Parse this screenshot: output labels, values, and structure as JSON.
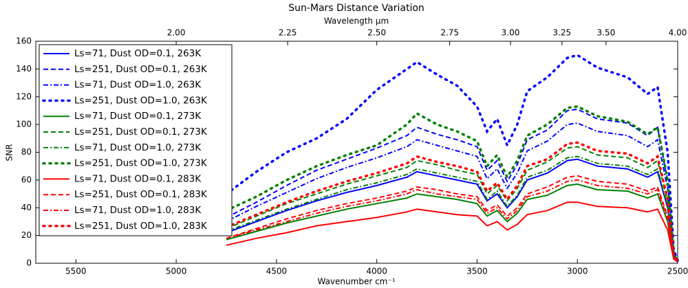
{
  "chart_data": {
    "type": "line",
    "title": "Sun-Mars Distance Variation",
    "xlabel": "Wavenumber cm⁻¹",
    "ylabel": "SNR",
    "x2label": "Wavelength μm",
    "x": [
      4750,
      4600,
      4450,
      4300,
      4150,
      4000,
      3850,
      3800,
      3700,
      3600,
      3500,
      3450,
      3400,
      3350,
      3300,
      3250,
      3150,
      3050,
      3000,
      2900,
      2750,
      2650,
      2600,
      2550,
      2520,
      2500
    ],
    "xlim": [
      5700,
      2500
    ],
    "xticks": [
      5500,
      5000,
      4500,
      4000,
      3500,
      3000,
      2500
    ],
    "x2ticks": [
      {
        "value": 2,
        "label": "2.00"
      },
      2.25,
      {
        "value": 2.5,
        "label": "2.50"
      },
      2.75,
      {
        "value": 3,
        "label": "3.00"
      },
      3.25,
      {
        "value": 3.5,
        "label": "3.50"
      },
      {
        "value": 4,
        "label": "4.00"
      }
    ],
    "ylim": [
      0,
      160
    ],
    "yticks": [
      0,
      20,
      40,
      60,
      80,
      100,
      120,
      140,
      160
    ],
    "legend": "upper left",
    "series": [
      {
        "name": "Ls=71, Dust OD=0.1, 263K",
        "color": "#0000ff",
        "style": "solid",
        "values": [
          22,
          30,
          38,
          45,
          51,
          56,
          62,
          66,
          63,
          60,
          57,
          45,
          50,
          40,
          48,
          60,
          65,
          74,
          75,
          70,
          68,
          62,
          66,
          40,
          5,
          1
        ]
      },
      {
        "name": "Ls=251, Dust OD=0.1, 263K",
        "color": "#0000ff",
        "style": "dashed",
        "values": [
          33,
          44,
          56,
          67,
          75,
          83,
          92,
          98,
          93,
          89,
          84,
          67,
          74,
          59,
          71,
          89,
          96,
          110,
          111,
          104,
          101,
          92,
          98,
          59,
          7,
          1
        ]
      },
      {
        "name": "Ls=71, Dust OD=1.0, 263K",
        "color": "#0000ff",
        "style": "dashdot",
        "values": [
          30,
          41,
          51,
          61,
          69,
          76,
          84,
          89,
          85,
          81,
          77,
          61,
          68,
          54,
          65,
          81,
          88,
          100,
          101,
          95,
          92,
          84,
          89,
          54,
          7,
          1
        ]
      },
      {
        "name": "Ls=251, Dust OD=1.0, 263K",
        "color": "#0000ff",
        "style": "dotted",
        "values": [
          50,
          66,
          80,
          90,
          104,
          125,
          140,
          145,
          136,
          128,
          113,
          95,
          104,
          85,
          100,
          124,
          134,
          148,
          150,
          141,
          134,
          122,
          127,
          80,
          10,
          2
        ]
      },
      {
        "name": "Ls=71, Dust OD=0.1, 273K",
        "color": "#008000",
        "style": "solid",
        "values": [
          17,
          23,
          29,
          34,
          39,
          43,
          47,
          50,
          48,
          46,
          43,
          34,
          38,
          30,
          36,
          46,
          49,
          56,
          57,
          53,
          52,
          47,
          50,
          30,
          4,
          1
        ]
      },
      {
        "name": "Ls=251, Dust OD=0.1, 273K",
        "color": "#008000",
        "style": "dashed",
        "values": [
          25,
          34,
          43,
          50,
          57,
          63,
          69,
          74,
          71,
          67,
          64,
          50,
          56,
          45,
          54,
          67,
          73,
          83,
          84,
          78,
          76,
          69,
          74,
          45,
          6,
          1
        ]
      },
      {
        "name": "Ls=71, Dust OD=1.0, 273K",
        "color": "#008000",
        "style": "dashdot",
        "values": [
          23,
          31,
          39,
          46,
          53,
          58,
          64,
          68,
          65,
          62,
          59,
          46,
          52,
          41,
          49,
          62,
          67,
          76,
          77,
          72,
          70,
          64,
          68,
          41,
          5,
          1
        ]
      },
      {
        "name": "Ls=251, Dust OD=1.0, 273K",
        "color": "#008000",
        "style": "dotted",
        "values": [
          38,
          48,
          60,
          70,
          78,
          85,
          100,
          108,
          100,
          95,
          88,
          70,
          78,
          62,
          74,
          92,
          100,
          112,
          113,
          106,
          102,
          93,
          98,
          60,
          8,
          1
        ]
      },
      {
        "name": "Ls=71, Dust OD=0.1, 283K",
        "color": "#ff0000",
        "style": "solid",
        "values": [
          13,
          18,
          22,
          27,
          30,
          33,
          37,
          39,
          37,
          35,
          34,
          27,
          30,
          24,
          28,
          35,
          38,
          44,
          44,
          41,
          40,
          37,
          39,
          24,
          3,
          1
        ]
      },
      {
        "name": "Ls=251, Dust OD=0.1, 283K",
        "color": "#ff0000",
        "style": "dashed",
        "values": [
          18,
          25,
          32,
          38,
          43,
          47,
          52,
          55,
          53,
          50,
          48,
          38,
          42,
          34,
          40,
          50,
          55,
          62,
          63,
          59,
          57,
          52,
          55,
          34,
          4,
          1
        ]
      },
      {
        "name": "Ls=71, Dust OD=1.0, 283K",
        "color": "#ff0000",
        "style": "dashdot",
        "values": [
          18,
          24,
          30,
          36,
          41,
          45,
          50,
          53,
          50,
          48,
          46,
          36,
          40,
          32,
          38,
          48,
          52,
          59,
          60,
          56,
          54,
          50,
          53,
          32,
          4,
          1
        ]
      },
      {
        "name": "Ls=251, Dust OD=1.0, 283K",
        "color": "#ff0000",
        "style": "dotted",
        "values": [
          26,
          35,
          44,
          52,
          59,
          65,
          72,
          77,
          73,
          70,
          66,
          52,
          58,
          46,
          56,
          70,
          75,
          86,
          87,
          81,
          79,
          72,
          77,
          46,
          6,
          1
        ]
      }
    ]
  }
}
